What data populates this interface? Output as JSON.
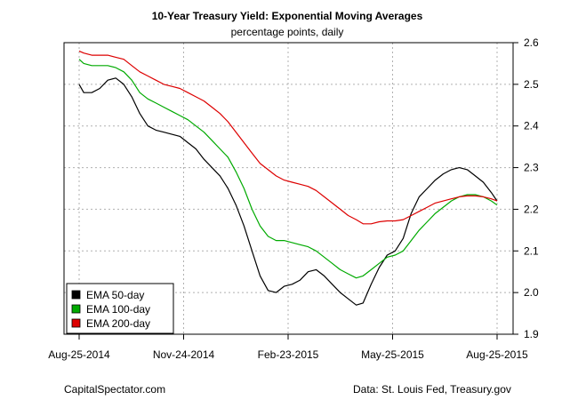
{
  "chart_data": {
    "type": "line",
    "title": "10-Year Treasury Yield: Exponential Moving Averages",
    "subtitle": "percentage points, daily",
    "x_ticks": [
      "Aug-25-2014",
      "Nov-24-2014",
      "Feb-23-2015",
      "May-25-2015",
      "Aug-25-2015"
    ],
    "xlim": [
      "2014-08-25",
      "2015-08-25"
    ],
    "ylim": [
      1.9,
      2.6
    ],
    "y_ticks": [
      "1.9",
      "2.0",
      "2.1",
      "2.2",
      "2.3",
      "2.4",
      "2.5",
      "2.6"
    ],
    "grid": true,
    "legend_position": "bottom-left",
    "series": [
      {
        "name": "EMA 50-day",
        "color": "#000000",
        "points": [
          [
            "2014-08-25",
            2.5
          ],
          [
            "2014-08-29",
            2.48
          ],
          [
            "2014-09-05",
            2.48
          ],
          [
            "2014-09-12",
            2.49
          ],
          [
            "2014-09-19",
            2.51
          ],
          [
            "2014-09-26",
            2.515
          ],
          [
            "2014-10-03",
            2.5
          ],
          [
            "2014-10-10",
            2.47
          ],
          [
            "2014-10-17",
            2.43
          ],
          [
            "2014-10-24",
            2.4
          ],
          [
            "2014-10-31",
            2.39
          ],
          [
            "2014-11-07",
            2.385
          ],
          [
            "2014-11-14",
            2.38
          ],
          [
            "2014-11-21",
            2.375
          ],
          [
            "2014-11-28",
            2.36
          ],
          [
            "2014-12-05",
            2.345
          ],
          [
            "2014-12-12",
            2.32
          ],
          [
            "2014-12-19",
            2.3
          ],
          [
            "2014-12-26",
            2.28
          ],
          [
            "2015-01-02",
            2.25
          ],
          [
            "2015-01-09",
            2.21
          ],
          [
            "2015-01-16",
            2.16
          ],
          [
            "2015-01-23",
            2.1
          ],
          [
            "2015-01-30",
            2.04
          ],
          [
            "2015-02-06",
            2.005
          ],
          [
            "2015-02-13",
            2.0
          ],
          [
            "2015-02-20",
            2.015
          ],
          [
            "2015-02-27",
            2.02
          ],
          [
            "2015-03-06",
            2.03
          ],
          [
            "2015-03-13",
            2.05
          ],
          [
            "2015-03-20",
            2.055
          ],
          [
            "2015-03-27",
            2.04
          ],
          [
            "2015-04-03",
            2.02
          ],
          [
            "2015-04-10",
            2.0
          ],
          [
            "2015-04-17",
            1.985
          ],
          [
            "2015-04-24",
            1.97
          ],
          [
            "2015-04-30",
            1.975
          ],
          [
            "2015-05-07",
            2.02
          ],
          [
            "2015-05-14",
            2.06
          ],
          [
            "2015-05-21",
            2.09
          ],
          [
            "2015-05-28",
            2.1
          ],
          [
            "2015-06-04",
            2.13
          ],
          [
            "2015-06-11",
            2.19
          ],
          [
            "2015-06-18",
            2.23
          ],
          [
            "2015-06-25",
            2.25
          ],
          [
            "2015-07-02",
            2.27
          ],
          [
            "2015-07-09",
            2.285
          ],
          [
            "2015-07-16",
            2.295
          ],
          [
            "2015-07-23",
            2.3
          ],
          [
            "2015-07-30",
            2.295
          ],
          [
            "2015-08-06",
            2.28
          ],
          [
            "2015-08-13",
            2.265
          ],
          [
            "2015-08-20",
            2.24
          ],
          [
            "2015-08-25",
            2.22
          ]
        ]
      },
      {
        "name": "EMA 100-day",
        "color": "#00aa00",
        "points": [
          [
            "2014-08-25",
            2.56
          ],
          [
            "2014-08-29",
            2.55
          ],
          [
            "2014-09-05",
            2.545
          ],
          [
            "2014-09-12",
            2.545
          ],
          [
            "2014-09-19",
            2.545
          ],
          [
            "2014-09-26",
            2.54
          ],
          [
            "2014-10-03",
            2.53
          ],
          [
            "2014-10-10",
            2.51
          ],
          [
            "2014-10-17",
            2.48
          ],
          [
            "2014-10-24",
            2.465
          ],
          [
            "2014-10-31",
            2.455
          ],
          [
            "2014-11-07",
            2.445
          ],
          [
            "2014-11-14",
            2.435
          ],
          [
            "2014-11-21",
            2.425
          ],
          [
            "2014-11-28",
            2.415
          ],
          [
            "2014-12-05",
            2.4
          ],
          [
            "2014-12-12",
            2.385
          ],
          [
            "2014-12-19",
            2.365
          ],
          [
            "2014-12-26",
            2.345
          ],
          [
            "2015-01-02",
            2.325
          ],
          [
            "2015-01-09",
            2.29
          ],
          [
            "2015-01-16",
            2.25
          ],
          [
            "2015-01-23",
            2.2
          ],
          [
            "2015-01-30",
            2.16
          ],
          [
            "2015-02-06",
            2.135
          ],
          [
            "2015-02-13",
            2.125
          ],
          [
            "2015-02-20",
            2.125
          ],
          [
            "2015-02-27",
            2.12
          ],
          [
            "2015-03-06",
            2.115
          ],
          [
            "2015-03-13",
            2.11
          ],
          [
            "2015-03-20",
            2.1
          ],
          [
            "2015-03-27",
            2.085
          ],
          [
            "2015-04-03",
            2.07
          ],
          [
            "2015-04-10",
            2.055
          ],
          [
            "2015-04-17",
            2.045
          ],
          [
            "2015-04-24",
            2.035
          ],
          [
            "2015-04-30",
            2.04
          ],
          [
            "2015-05-07",
            2.055
          ],
          [
            "2015-05-14",
            2.07
          ],
          [
            "2015-05-21",
            2.085
          ],
          [
            "2015-05-28",
            2.09
          ],
          [
            "2015-06-04",
            2.1
          ],
          [
            "2015-06-11",
            2.125
          ],
          [
            "2015-06-18",
            2.15
          ],
          [
            "2015-06-25",
            2.17
          ],
          [
            "2015-07-02",
            2.19
          ],
          [
            "2015-07-09",
            2.205
          ],
          [
            "2015-07-16",
            2.22
          ],
          [
            "2015-07-23",
            2.23
          ],
          [
            "2015-07-30",
            2.235
          ],
          [
            "2015-08-06",
            2.235
          ],
          [
            "2015-08-13",
            2.23
          ],
          [
            "2015-08-20",
            2.22
          ],
          [
            "2015-08-25",
            2.21
          ]
        ]
      },
      {
        "name": "EMA 200-day",
        "color": "#dd0000",
        "points": [
          [
            "2014-08-25",
            2.58
          ],
          [
            "2014-08-29",
            2.575
          ],
          [
            "2014-09-05",
            2.57
          ],
          [
            "2014-09-12",
            2.57
          ],
          [
            "2014-09-19",
            2.57
          ],
          [
            "2014-09-26",
            2.565
          ],
          [
            "2014-10-03",
            2.56
          ],
          [
            "2014-10-10",
            2.545
          ],
          [
            "2014-10-17",
            2.53
          ],
          [
            "2014-10-24",
            2.52
          ],
          [
            "2014-10-31",
            2.51
          ],
          [
            "2014-11-07",
            2.5
          ],
          [
            "2014-11-14",
            2.495
          ],
          [
            "2014-11-21",
            2.49
          ],
          [
            "2014-11-28",
            2.48
          ],
          [
            "2014-12-05",
            2.47
          ],
          [
            "2014-12-12",
            2.46
          ],
          [
            "2014-12-19",
            2.445
          ],
          [
            "2014-12-26",
            2.43
          ],
          [
            "2015-01-02",
            2.41
          ],
          [
            "2015-01-09",
            2.385
          ],
          [
            "2015-01-16",
            2.36
          ],
          [
            "2015-01-23",
            2.335
          ],
          [
            "2015-01-30",
            2.31
          ],
          [
            "2015-02-06",
            2.295
          ],
          [
            "2015-02-13",
            2.28
          ],
          [
            "2015-02-20",
            2.27
          ],
          [
            "2015-02-27",
            2.265
          ],
          [
            "2015-03-06",
            2.26
          ],
          [
            "2015-03-13",
            2.255
          ],
          [
            "2015-03-20",
            2.245
          ],
          [
            "2015-03-27",
            2.23
          ],
          [
            "2015-04-03",
            2.215
          ],
          [
            "2015-04-10",
            2.2
          ],
          [
            "2015-04-17",
            2.185
          ],
          [
            "2015-04-24",
            2.175
          ],
          [
            "2015-04-30",
            2.165
          ],
          [
            "2015-05-07",
            2.165
          ],
          [
            "2015-05-14",
            2.17
          ],
          [
            "2015-05-21",
            2.172
          ],
          [
            "2015-05-28",
            2.172
          ],
          [
            "2015-06-04",
            2.175
          ],
          [
            "2015-06-11",
            2.185
          ],
          [
            "2015-06-18",
            2.195
          ],
          [
            "2015-06-25",
            2.205
          ],
          [
            "2015-07-02",
            2.215
          ],
          [
            "2015-07-09",
            2.22
          ],
          [
            "2015-07-16",
            2.225
          ],
          [
            "2015-07-23",
            2.23
          ],
          [
            "2015-07-30",
            2.232
          ],
          [
            "2015-08-06",
            2.232
          ],
          [
            "2015-08-13",
            2.23
          ],
          [
            "2015-08-20",
            2.225
          ],
          [
            "2015-08-25",
            2.22
          ]
        ]
      }
    ]
  },
  "footer": {
    "left": "CapitalSpectator.com",
    "right": "Data: St. Louis Fed, Treasury.gov"
  }
}
